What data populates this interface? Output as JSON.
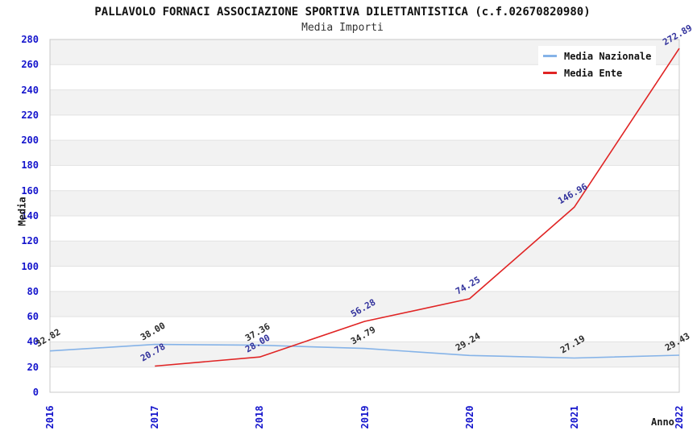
{
  "chart_data": {
    "type": "line",
    "title": "PALLAVOLO FORNACI ASSOCIAZIONE SPORTIVA DILETTANTISTICA (c.f.02670820980)",
    "subtitle": "Media Importi",
    "xlabel": "Anno",
    "ylabel": "Media",
    "x": [
      "2016",
      "2017",
      "2018",
      "2019",
      "2020",
      "2021",
      "2022"
    ],
    "ylim": [
      0,
      280
    ],
    "ytick_step": 20,
    "grid": "horizontal",
    "background_bands": true,
    "legend_position": "top-right",
    "colors": {
      "tick_label": "#1414cc",
      "band_gray": "#f2f2f2",
      "gridline": "#e2e2e2",
      "plot_border": "#c8c8c8"
    },
    "series": [
      {
        "name": "Media Nazionale",
        "color": "#85b3e8",
        "label_color": "#2b2b2b",
        "values": [
          32.82,
          38.0,
          37.36,
          34.79,
          29.24,
          27.19,
          29.43
        ],
        "labels": [
          "32.82",
          "38.00",
          "37.36",
          "34.79",
          "29.24",
          "27.19",
          "29.43"
        ]
      },
      {
        "name": "Media Ente",
        "color": "#e02424",
        "label_color": "#31319c",
        "values": [
          null,
          20.78,
          28.0,
          56.28,
          74.25,
          146.96,
          272.89
        ],
        "labels": [
          null,
          "20.78",
          "28.00",
          "56.28",
          "74.25",
          "146.96",
          "272.89"
        ]
      }
    ]
  }
}
